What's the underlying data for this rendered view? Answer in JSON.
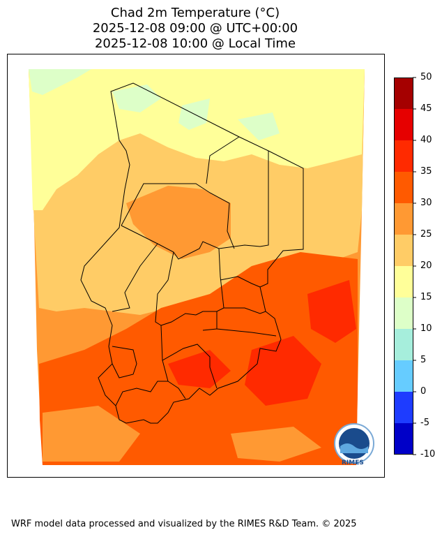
{
  "title": {
    "line1": "Chad 2m Temperature (°C)",
    "line2": "2025-12-08 09:00 @ UTC+00:00",
    "line3": "2025-12-08 10:00 @ Local Time"
  },
  "colorbar": {
    "ticks": [
      "50",
      "45",
      "40",
      "35",
      "30",
      "25",
      "20",
      "15",
      "10",
      "5",
      "0",
      "-5",
      "-10"
    ],
    "bins": [
      {
        "range": "45-50",
        "color": "#a50000"
      },
      {
        "range": "40-45",
        "color": "#e60000"
      },
      {
        "range": "35-40",
        "color": "#ff2a00"
      },
      {
        "range": "30-35",
        "color": "#ff5a00"
      },
      {
        "range": "25-30",
        "color": "#ff9933"
      },
      {
        "range": "20-25",
        "color": "#ffcc66"
      },
      {
        "range": "15-20",
        "color": "#ffff99"
      },
      {
        "range": "10-15",
        "color": "#ddffc8"
      },
      {
        "range": "5-10",
        "color": "#a6eedc"
      },
      {
        "range": "0-5",
        "color": "#66ccff"
      },
      {
        "range": "-5-0",
        "color": "#1e3cff"
      },
      {
        "range": "-10--5",
        "color": "#0000c8"
      }
    ],
    "range": [
      -10,
      50
    ]
  },
  "logo": {
    "text": "RIMES"
  },
  "footer": "WRF model data processed and visualized by the RIMES R&D Team. © 2025"
}
